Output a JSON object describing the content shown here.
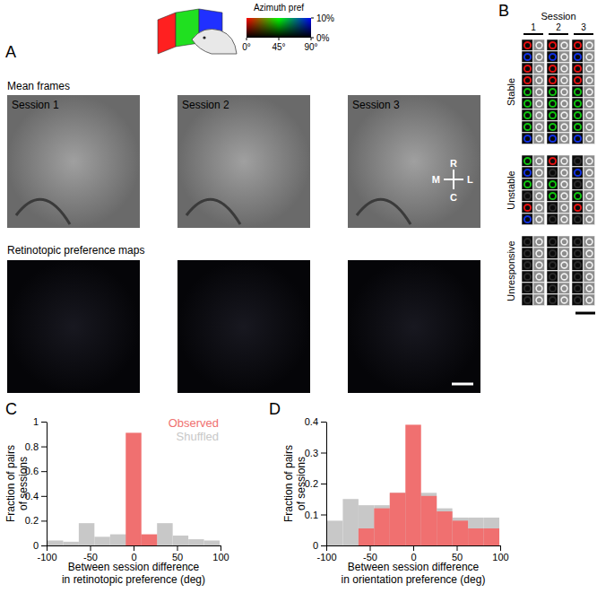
{
  "panel_a": {
    "letter": "A",
    "colorbar": {
      "title": "Azimuth pref",
      "colors": [
        "#ff0000",
        "#00ff00",
        "#0000ff"
      ],
      "xlim": [
        0,
        90
      ],
      "xticks": [
        {
          "value": 0,
          "label": "0°"
        },
        {
          "value": 45,
          "label": "45°"
        },
        {
          "value": 90,
          "label": "90°"
        }
      ],
      "ylim": [
        0,
        10
      ],
      "yticks": [
        {
          "value": 0,
          "label": "0%"
        },
        {
          "value": 10,
          "label": "10%"
        }
      ]
    },
    "row_titles": [
      "Mean frames",
      "Retinotopic preference maps"
    ],
    "sessions": [
      "Session 1",
      "Session 2",
      "Session 3"
    ],
    "compass": {
      "up": "R",
      "down": "C",
      "left": "M",
      "right": "L"
    }
  },
  "panel_b": {
    "letter": "B",
    "header": "Session",
    "sessions": [
      "1",
      "2",
      "3"
    ],
    "groups": [
      {
        "label": "Stable",
        "rows": [
          [
            "#e01010",
            "#e01010",
            "#e01010"
          ],
          [
            "#1030e0",
            "#1030e0",
            "#1030e0"
          ],
          [
            "#e01010",
            "#e01010",
            "#e01010"
          ],
          [
            "#e01010",
            "#e01010",
            "#e01010"
          ],
          [
            "#10c010",
            "#10c010",
            "#10c010"
          ],
          [
            "#10c010",
            "#10c010",
            "#10c010"
          ],
          [
            "#10c010",
            "#10c010",
            "#10c010"
          ],
          [
            "#10c010",
            "#10c010",
            "#10c010"
          ],
          [
            "#1030e0",
            "#1030e0",
            "#1030e0"
          ]
        ]
      },
      {
        "label": "Unstable",
        "rows": [
          [
            "#10c010",
            "#e01010",
            null
          ],
          [
            "#1030e0",
            null,
            "#1030e0"
          ],
          [
            "#10c010",
            "#10c010",
            null
          ],
          [
            null,
            "#10c010",
            "#10c010"
          ],
          [
            "#e01010",
            null,
            "#e01010"
          ],
          [
            "#1030e0",
            null,
            null
          ]
        ]
      },
      {
        "label": "Unresponsive",
        "rows": [
          [
            null,
            null,
            null
          ],
          [
            null,
            null,
            null
          ],
          [
            null,
            null,
            null
          ],
          [
            null,
            null,
            null
          ],
          [
            null,
            null,
            null
          ],
          [
            null,
            null,
            null
          ]
        ]
      }
    ]
  },
  "chart_data": [
    {
      "type": "histogram",
      "panel": "C",
      "xlabel": [
        "Between session difference",
        "in retinotopic preference (deg)"
      ],
      "ylabel": [
        "Fraction of pairs",
        "of sessions"
      ],
      "bins": [
        -99,
        -81,
        -63,
        -45,
        -27,
        -9,
        9,
        27,
        45,
        63,
        81,
        99
      ],
      "series": [
        {
          "name": "Observed",
          "color": "#f07070",
          "values": [
            0,
            0,
            0,
            0,
            0,
            0.91,
            0.09,
            0,
            0,
            0,
            0
          ]
        },
        {
          "name": "Shuffled",
          "color": "#c8c8c8",
          "values": [
            0.04,
            0.03,
            0.18,
            0.07,
            0.09,
            0.09,
            0.07,
            0.18,
            0.08,
            0.05,
            0.04
          ]
        }
      ],
      "xlim": [
        -100,
        100
      ],
      "xticks": [
        -100,
        -50,
        0,
        50,
        100
      ],
      "ylim": [
        0,
        1
      ],
      "yticks": [
        0,
        0.2,
        0.4,
        0.6,
        0.8,
        1
      ],
      "legend": "top-right"
    },
    {
      "type": "histogram",
      "panel": "D",
      "xlabel": [
        "Between session difference",
        "in orientation preference (deg)"
      ],
      "ylabel": [
        "Fraction of pairs",
        "of sessions"
      ],
      "bins": [
        -99,
        -81,
        -63,
        -45,
        -27,
        -9,
        9,
        27,
        45,
        63,
        81,
        99
      ],
      "series": [
        {
          "color": "#f07070",
          "values": [
            0,
            0,
            0.055,
            0.12,
            0.17,
            0.39,
            0.16,
            0.11,
            0.08,
            0.055,
            0.055
          ]
        },
        {
          "color": "#c8c8c8",
          "values": [
            0.08,
            0.15,
            0.13,
            0.13,
            0.17,
            0.17,
            0.17,
            0.12,
            0.09,
            0.09,
            0.09
          ]
        }
      ],
      "xlim": [
        -100,
        100
      ],
      "xticks": [
        -100,
        -50,
        0,
        50,
        100
      ],
      "ylim": [
        0,
        0.4
      ],
      "yticks": [
        0,
        0.1,
        0.2,
        0.3,
        0.4
      ]
    }
  ]
}
